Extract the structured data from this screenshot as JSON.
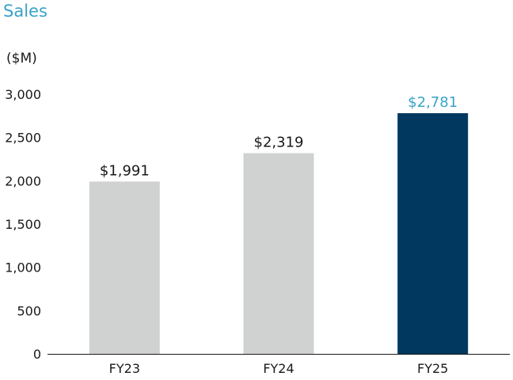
{
  "chart_data": {
    "type": "bar",
    "title": "Sales",
    "ylabel": "($M)",
    "categories": [
      "FY23",
      "FY24",
      "FY25"
    ],
    "values": [
      1991,
      2319,
      2781
    ],
    "data_labels": [
      "$1,991",
      "$2,319",
      "$2,781"
    ],
    "ylim": [
      0,
      3000
    ],
    "yticks": [
      0,
      500,
      1000,
      1500,
      2000,
      2500,
      3000
    ],
    "ytick_labels": [
      "0",
      "500",
      "1,000",
      "1,500",
      "2,000",
      "2,500",
      "3,000"
    ],
    "grid": false,
    "colors": {
      "title": "#3aa3c7",
      "bar_default": "#d0d2d1",
      "bar_highlight": "#00385f",
      "label_default": "#1a1a1a",
      "label_highlight": "#3aa3c7",
      "axis": "#1a1a1a"
    },
    "highlight_index": 2
  }
}
